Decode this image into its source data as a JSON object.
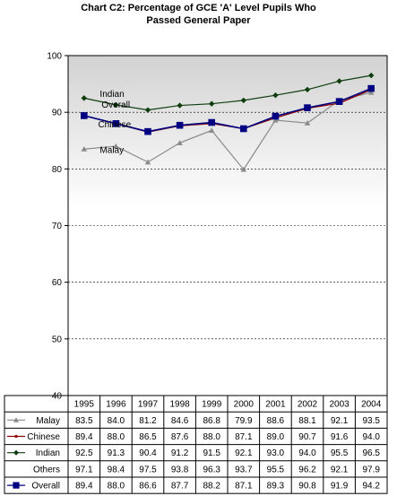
{
  "chart_data": {
    "type": "line",
    "title_line1": "Chart C2: Percentage of GCE 'A' Level Pupils Who",
    "title_line2": "Passed General Paper",
    "ylim": [
      40,
      100
    ],
    "yticks": [
      40,
      50,
      60,
      70,
      80,
      90,
      100
    ],
    "grid": true,
    "categories": [
      "1995",
      "1996",
      "1997",
      "1998",
      "1999",
      "2000",
      "2001",
      "2002",
      "2003",
      "2004"
    ],
    "series": [
      {
        "name": "Malay",
        "color": "#8a8a8a",
        "marker": "triangle",
        "plotted": true,
        "values": [
          "83.5",
          "84.0",
          "81.2",
          "84.6",
          "86.8",
          "79.9",
          "88.6",
          "88.1",
          "92.1",
          "93.5"
        ]
      },
      {
        "name": "Chinese",
        "color": "#8b0000",
        "marker": "circle",
        "plotted": true,
        "values": [
          "89.4",
          "88.0",
          "86.5",
          "87.6",
          "88.0",
          "87.1",
          "89.0",
          "90.7",
          "91.6",
          "94.0"
        ]
      },
      {
        "name": "Indian",
        "color": "#0d3d0d",
        "marker": "diamond",
        "plotted": true,
        "values": [
          "92.5",
          "91.3",
          "90.4",
          "91.2",
          "91.5",
          "92.1",
          "93.0",
          "94.0",
          "95.5",
          "96.5"
        ]
      },
      {
        "name": "Others",
        "color": "#000000",
        "marker": "none",
        "plotted": false,
        "values": [
          "97.1",
          "98.4",
          "97.5",
          "93.8",
          "96.3",
          "93.7",
          "95.5",
          "96.2",
          "92.1",
          "97.9"
        ]
      },
      {
        "name": "Overall",
        "color": "#000080",
        "marker": "square",
        "plotted": true,
        "values": [
          "89.4",
          "88.0",
          "86.6",
          "87.7",
          "88.2",
          "87.1",
          "89.3",
          "90.8",
          "91.9",
          "94.2"
        ]
      }
    ],
    "annotations": [
      {
        "text": "Indian",
        "series": "Indian"
      },
      {
        "text": "Overall",
        "series": "Overall"
      },
      {
        "text": "Chinese",
        "series": "Chinese"
      },
      {
        "text": "Malay",
        "series": "Malay"
      }
    ]
  }
}
